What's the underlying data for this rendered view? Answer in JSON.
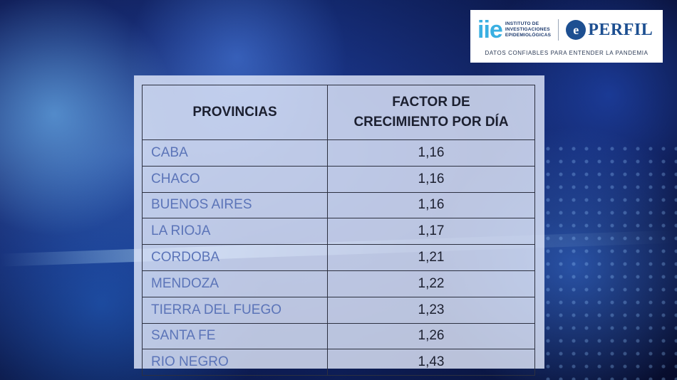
{
  "logo": {
    "iie_letters": "iie",
    "iie_line1": "INSTITUTO DE",
    "iie_line2": "INVESTIGACIONES",
    "iie_line3": "EPIDEMIOLÓGICAS",
    "perfil_initial": "e",
    "perfil_word": "PERFIL",
    "tagline": "DATOS CONFIABLES PARA ENTENDER LA PANDEMIA"
  },
  "table": {
    "header_province": "PROVINCIAS",
    "header_factor_line1": "FACTOR DE",
    "header_factor_line2": "CRECIMIENTO POR DÍA",
    "rows": [
      {
        "province": "CABA",
        "factor": "1,16"
      },
      {
        "province": "CHACO",
        "factor": "1,16"
      },
      {
        "province": "BUENOS AIRES",
        "factor": "1,16"
      },
      {
        "province": "LA RIOJA",
        "factor": "1,17"
      },
      {
        "province": "CORDOBA",
        "factor": "1,21"
      },
      {
        "province": "MENDOZA",
        "factor": "1,22"
      },
      {
        "province": "TIERRA DEL FUEGO",
        "factor": "1,23"
      },
      {
        "province": "SANTA FE",
        "factor": "1,26"
      },
      {
        "province": "RIO NEGRO",
        "factor": "1,43"
      }
    ]
  }
}
